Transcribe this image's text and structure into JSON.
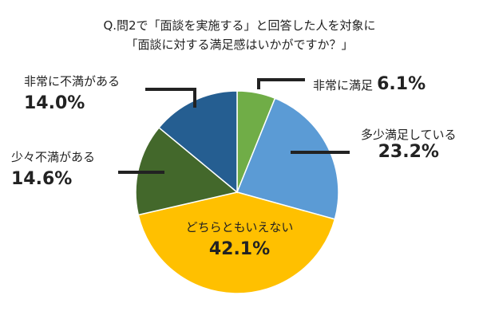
{
  "chart_data": {
    "type": "pie",
    "title_lines": [
      "Q.問2で「面談を実施する」と回答した人を対象に",
      "「面談に対する満足感はいかがですか？」"
    ],
    "categories": [
      "非常に満足",
      "多少満足している",
      "どちらともいえない",
      "少々不満がある",
      "非常に不満がある"
    ],
    "values": [
      6.1,
      23.2,
      42.1,
      14.6,
      14.0
    ],
    "value_labels": [
      "6.1%",
      "23.2%",
      "42.1%",
      "14.6%",
      "14.0%"
    ],
    "colors": [
      "#70ad47",
      "#5b9bd5",
      "#ffc000",
      "#43682b",
      "#255e91"
    ],
    "start_angle": "12 o'clock",
    "direction": "clockwise",
    "legend": "none"
  }
}
